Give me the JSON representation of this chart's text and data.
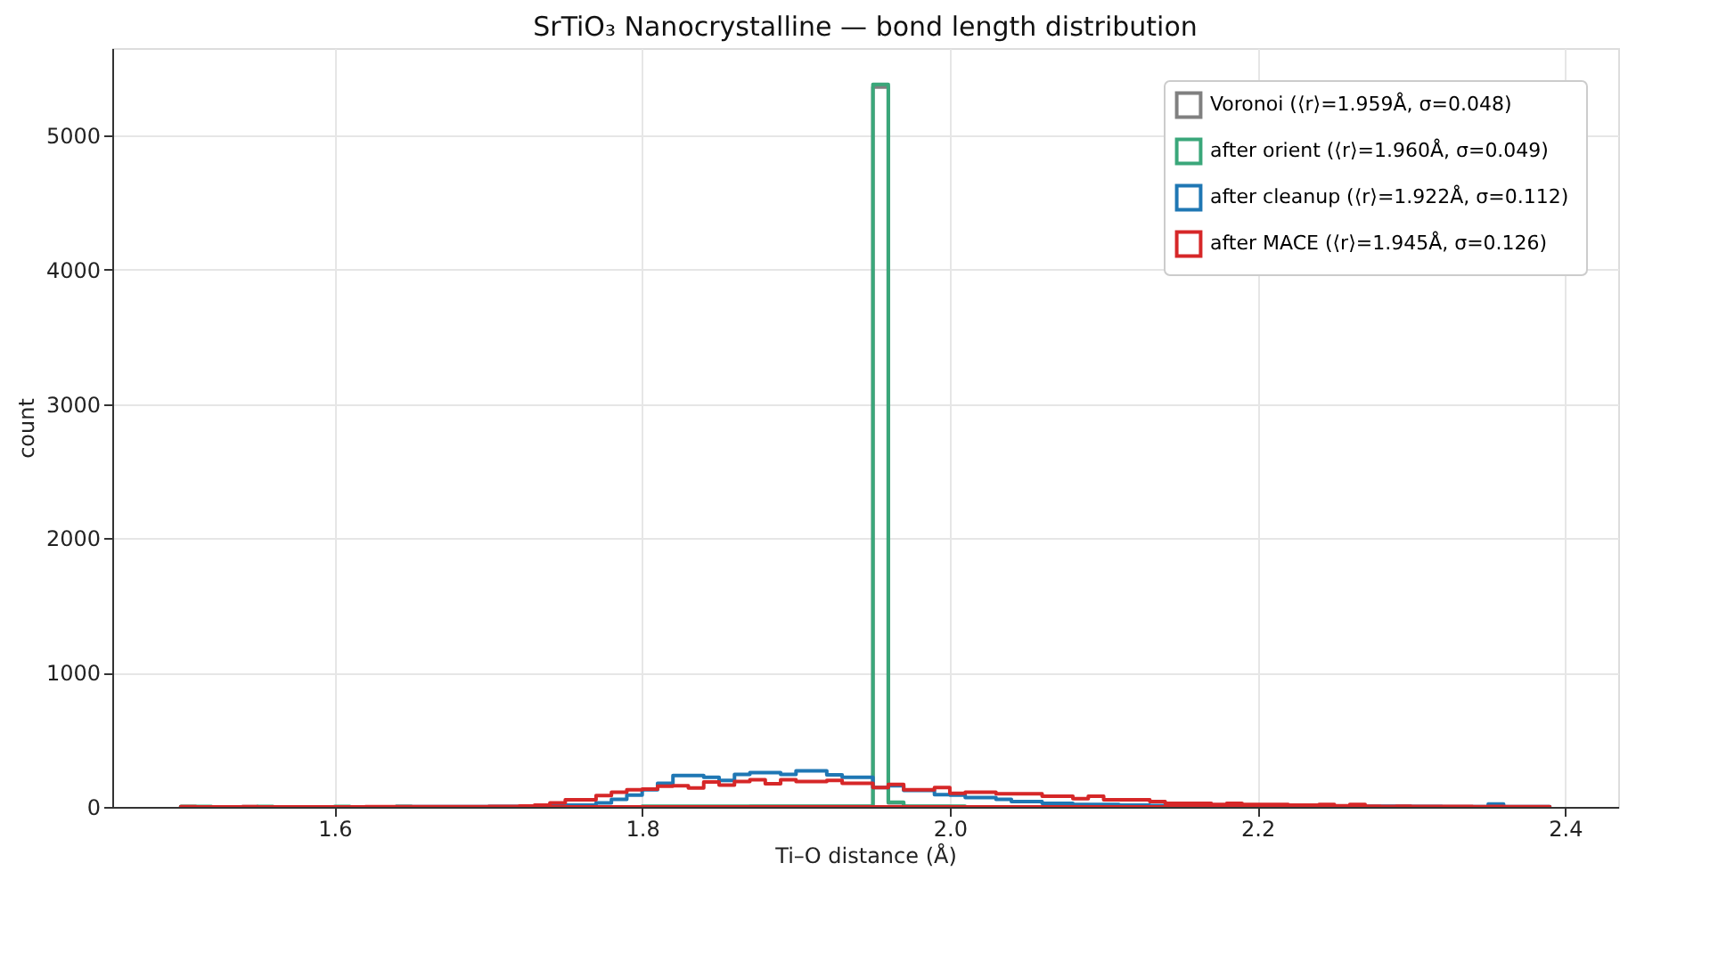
{
  "chart_data": {
    "type": "histogram",
    "title": "SrTiO₃ Nanocrystalline — bond length distribution",
    "xlabel": "Ti–O distance (Å)",
    "ylabel": "count",
    "bins": [
      1.5,
      1.51,
      1.52,
      1.53,
      1.54,
      1.55,
      1.56,
      1.57,
      1.58,
      1.59,
      1.6,
      1.61,
      1.62,
      1.63,
      1.64,
      1.65,
      1.66,
      1.67,
      1.68,
      1.69,
      1.7,
      1.71,
      1.72,
      1.73,
      1.74,
      1.75,
      1.76,
      1.77,
      1.78,
      1.79,
      1.8,
      1.81,
      1.82,
      1.83,
      1.84,
      1.85,
      1.86,
      1.87,
      1.88,
      1.89,
      1.9,
      1.91,
      1.92,
      1.93,
      1.94,
      1.95,
      1.96,
      1.97,
      1.98,
      1.99,
      2.0,
      2.01,
      2.02,
      2.03,
      2.04,
      2.05,
      2.06,
      2.07,
      2.08,
      2.09,
      2.1,
      2.11,
      2.12,
      2.13,
      2.14,
      2.15,
      2.16,
      2.17,
      2.18,
      2.19,
      2.2,
      2.21,
      2.22,
      2.23,
      2.24,
      2.25,
      2.26,
      2.27,
      2.28,
      2.29,
      2.3,
      2.31,
      2.32,
      2.33,
      2.34,
      2.35,
      2.36,
      2.37,
      2.38,
      2.39
    ],
    "series": [
      {
        "name": "Voronoi  (⟨r⟩=1.959Å, σ=0.048)",
        "color": "#808080",
        "values": [
          2,
          0,
          0,
          0,
          2,
          0,
          0,
          0,
          0,
          0,
          0,
          0,
          0,
          0,
          0,
          0,
          0,
          0,
          0,
          0,
          0,
          0,
          0,
          0,
          0,
          0,
          0,
          0,
          0,
          0,
          0,
          0,
          0,
          0,
          0,
          0,
          0,
          4,
          4,
          4,
          4,
          4,
          4,
          4,
          4,
          5360,
          30,
          4,
          3,
          3,
          2,
          0,
          0,
          0,
          0,
          0,
          0,
          0,
          0,
          0,
          0,
          0,
          0,
          0,
          0,
          0,
          0,
          0,
          0,
          0,
          0,
          0,
          0,
          0,
          0,
          0,
          0,
          0,
          0,
          0,
          0,
          0,
          0,
          0,
          0,
          0,
          0,
          0,
          0
        ]
      },
      {
        "name": "after orient  (⟨r⟩=1.960Å, σ=0.049)",
        "color": "#3aa77a",
        "values": [
          3,
          3,
          0,
          0,
          0,
          3,
          0,
          0,
          0,
          0,
          3,
          0,
          0,
          0,
          3,
          0,
          0,
          0,
          0,
          0,
          0,
          0,
          0,
          0,
          0,
          0,
          0,
          0,
          0,
          0,
          5,
          5,
          5,
          5,
          5,
          5,
          5,
          5,
          5,
          5,
          5,
          5,
          5,
          5,
          5,
          5380,
          35,
          5,
          5,
          5,
          5,
          0,
          0,
          0,
          0,
          0,
          0,
          0,
          0,
          0,
          0,
          0,
          0,
          0,
          0,
          0,
          0,
          0,
          0,
          0,
          0,
          0,
          0,
          0,
          0,
          0,
          0,
          0,
          0,
          0,
          0,
          0,
          0,
          0,
          0,
          0,
          0,
          0,
          0
        ]
      },
      {
        "name": "after cleanup  (⟨r⟩=1.922Å, σ=0.112)",
        "color": "#1f77b4",
        "values": [
          0,
          0,
          0,
          0,
          0,
          0,
          0,
          0,
          0,
          0,
          0,
          0,
          0,
          0,
          1,
          1,
          1,
          2,
          2,
          2,
          3,
          4,
          5,
          8,
          13,
          13,
          13,
          30,
          57,
          88,
          128,
          176,
          233,
          233,
          220,
          198,
          242,
          255,
          255,
          242,
          268,
          268,
          238,
          220,
          220,
          145,
          158,
          123,
          123,
          92,
          88,
          70,
          70,
          57,
          40,
          40,
          26,
          26,
          18,
          18,
          18,
          13,
          13,
          10,
          10,
          10,
          10,
          10,
          10,
          10,
          10,
          5,
          5,
          5,
          5,
          5,
          5,
          5,
          5,
          5,
          3,
          3,
          2,
          2,
          2,
          22,
          2,
          1,
          1
        ]
      },
      {
        "name": "after MACE  (⟨r⟩=1.945Å, σ=0.126)",
        "color": "#d62728",
        "values": [
          2,
          0,
          0,
          0,
          2,
          0,
          0,
          0,
          0,
          0,
          0,
          0,
          1,
          1,
          1,
          1,
          1,
          1,
          2,
          2,
          3,
          4,
          6,
          13,
          30,
          53,
          53,
          84,
          110,
          128,
          132,
          154,
          158,
          141,
          185,
          163,
          189,
          202,
          172,
          202,
          189,
          189,
          198,
          176,
          176,
          145,
          167,
          128,
          128,
          145,
          101,
          110,
          110,
          97,
          97,
          97,
          79,
          79,
          62,
          79,
          53,
          53,
          53,
          40,
          26,
          26,
          26,
          18,
          26,
          18,
          18,
          18,
          13,
          13,
          18,
          9,
          18,
          5,
          4,
          5,
          3,
          4,
          3,
          3,
          2,
          3,
          2,
          2,
          2
        ]
      }
    ],
    "xlim": [
      1.4555,
      2.4345
    ],
    "xticks": [
      1.6,
      1.8,
      {
        "value": 2.0,
        "label": "2.0"
      },
      2.2,
      2.4
    ],
    "ylim": [
      0,
      5650
    ],
    "yticks": [
      0,
      1000,
      2000,
      3000,
      4000,
      5000
    ],
    "grid": true,
    "legend": "top right"
  }
}
